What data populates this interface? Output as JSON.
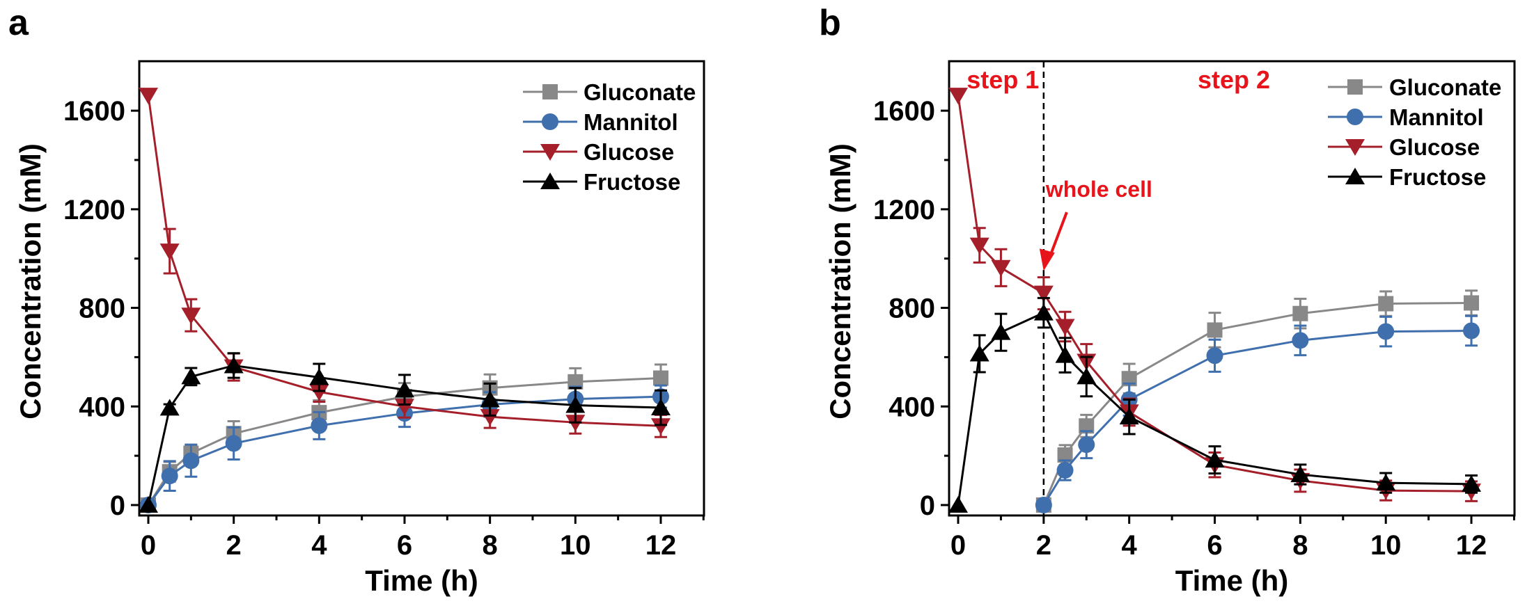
{
  "figure": {
    "panels": [
      "a",
      "b"
    ]
  },
  "colors": {
    "Gluconate": "#888888",
    "Mannitol": "#3f6fad",
    "Glucose": "#a51f2a",
    "Fructose": "#000000",
    "annotation": "#e8141b"
  },
  "chart_data": [
    {
      "panel_label": "a",
      "type": "line",
      "title": "",
      "xlabel": "Time (h)",
      "ylabel": "Concentration (mM)",
      "xlim": [
        -0.2,
        13
      ],
      "ylim": [
        -30,
        1800
      ],
      "xticks": [
        0,
        2,
        4,
        6,
        8,
        10,
        12
      ],
      "xtick_labels": [
        "0",
        "2",
        "4",
        "6",
        "8",
        "10",
        "12"
      ],
      "yticks": [
        0,
        400,
        800,
        1200,
        1600
      ],
      "ytick_labels": [
        "0",
        "400",
        "800",
        "1200",
        "1600"
      ],
      "grid": false,
      "legend": {
        "position": "top-right",
        "entries": [
          "Gluconate",
          "Mannitol",
          "Glucose",
          "Fructose"
        ]
      },
      "series": [
        {
          "name": "Gluconate",
          "marker": "square",
          "x": [
            0,
            0.5,
            1,
            2,
            4,
            6,
            8,
            10,
            12
          ],
          "y": [
            0,
            135,
            210,
            290,
            375,
            440,
            475,
            500,
            515
          ],
          "err": [
            10,
            40,
            35,
            50,
            50,
            55,
            55,
            55,
            55
          ]
        },
        {
          "name": "Mannitol",
          "marker": "circle",
          "x": [
            0,
            0.5,
            1,
            2,
            4,
            6,
            8,
            10,
            12
          ],
          "y": [
            0,
            118,
            180,
            250,
            322,
            372,
            408,
            430,
            440
          ],
          "err": [
            10,
            60,
            65,
            65,
            55,
            55,
            50,
            50,
            45
          ]
        },
        {
          "name": "Glucose",
          "marker": "triangle-down",
          "x": [
            0,
            0.5,
            1,
            2,
            4,
            6,
            8,
            10,
            12
          ],
          "y": [
            1662,
            1030,
            770,
            560,
            459,
            400,
            358,
            335,
            321
          ],
          "err": [
            0,
            90,
            65,
            55,
            40,
            45,
            45,
            45,
            45
          ]
        },
        {
          "name": "Fructose",
          "marker": "triangle-up",
          "x": [
            0,
            0.5,
            1,
            2,
            4,
            6,
            8,
            10,
            12
          ],
          "y": [
            0,
            394,
            521,
            566,
            518,
            468,
            428,
            405,
            395
          ],
          "err": [
            0,
            15,
            35,
            50,
            55,
            60,
            65,
            70,
            70
          ]
        }
      ],
      "annotations": []
    },
    {
      "panel_label": "b",
      "type": "line",
      "title": "",
      "xlabel": "Time (h)",
      "ylabel": "Concentration (mM)",
      "xlim": [
        -0.2,
        13
      ],
      "ylim": [
        -30,
        1800
      ],
      "xticks": [
        0,
        2,
        4,
        6,
        8,
        10,
        12
      ],
      "xtick_labels": [
        "0",
        "2",
        "4",
        "6",
        "8",
        "10",
        "12"
      ],
      "yticks": [
        0,
        400,
        800,
        1200,
        1600
      ],
      "ytick_labels": [
        "0",
        "400",
        "800",
        "1200",
        "1600"
      ],
      "grid": false,
      "legend": {
        "position": "top-right",
        "entries": [
          "Gluconate",
          "Mannitol",
          "Glucose",
          "Fructose"
        ]
      },
      "series": [
        {
          "name": "Gluconate",
          "marker": "square",
          "x": [
            2,
            2.5,
            3,
            4,
            6,
            8,
            10,
            12
          ],
          "y": [
            0,
            203,
            321,
            513,
            710,
            777,
            817,
            820
          ],
          "err": [
            10,
            40,
            45,
            60,
            70,
            60,
            50,
            50
          ]
        },
        {
          "name": "Mannitol",
          "marker": "circle",
          "x": [
            2,
            2.5,
            3,
            4,
            6,
            8,
            10,
            12
          ],
          "y": [
            0,
            141,
            245,
            428,
            606,
            668,
            704,
            707
          ],
          "err": [
            10,
            40,
            55,
            65,
            65,
            60,
            60,
            60
          ]
        },
        {
          "name": "Glucose",
          "marker": "triangle-down",
          "x": [
            0,
            0.5,
            1,
            2,
            2.5,
            3,
            4,
            6,
            8,
            10,
            12
          ],
          "y": [
            1662,
            1054,
            963,
            859,
            724,
            583,
            377,
            163,
            99,
            59,
            56
          ],
          "err": [
            0,
            70,
            75,
            65,
            60,
            70,
            55,
            50,
            45,
            40,
            40
          ]
        },
        {
          "name": "Fructose",
          "marker": "triangle-up",
          "x": [
            0,
            0.5,
            1,
            2,
            2.5,
            3,
            4,
            6,
            8,
            10,
            12
          ],
          "y": [
            0,
            614,
            701,
            780,
            608,
            521,
            358,
            183,
            124,
            90,
            85
          ],
          "err": [
            0,
            75,
            75,
            60,
            70,
            80,
            70,
            55,
            40,
            40,
            35
          ]
        }
      ],
      "annotations": [
        {
          "text": "step 1",
          "x": 0.2,
          "y": 1690
        },
        {
          "text": "step 2",
          "x": 5.6,
          "y": 1690
        },
        {
          "text": "whole cell",
          "x": 2.05,
          "y": 1250,
          "arrow_to": [
            2.0,
            950
          ]
        },
        {
          "type": "vline",
          "x": 2,
          "style": "dashed"
        }
      ]
    }
  ]
}
